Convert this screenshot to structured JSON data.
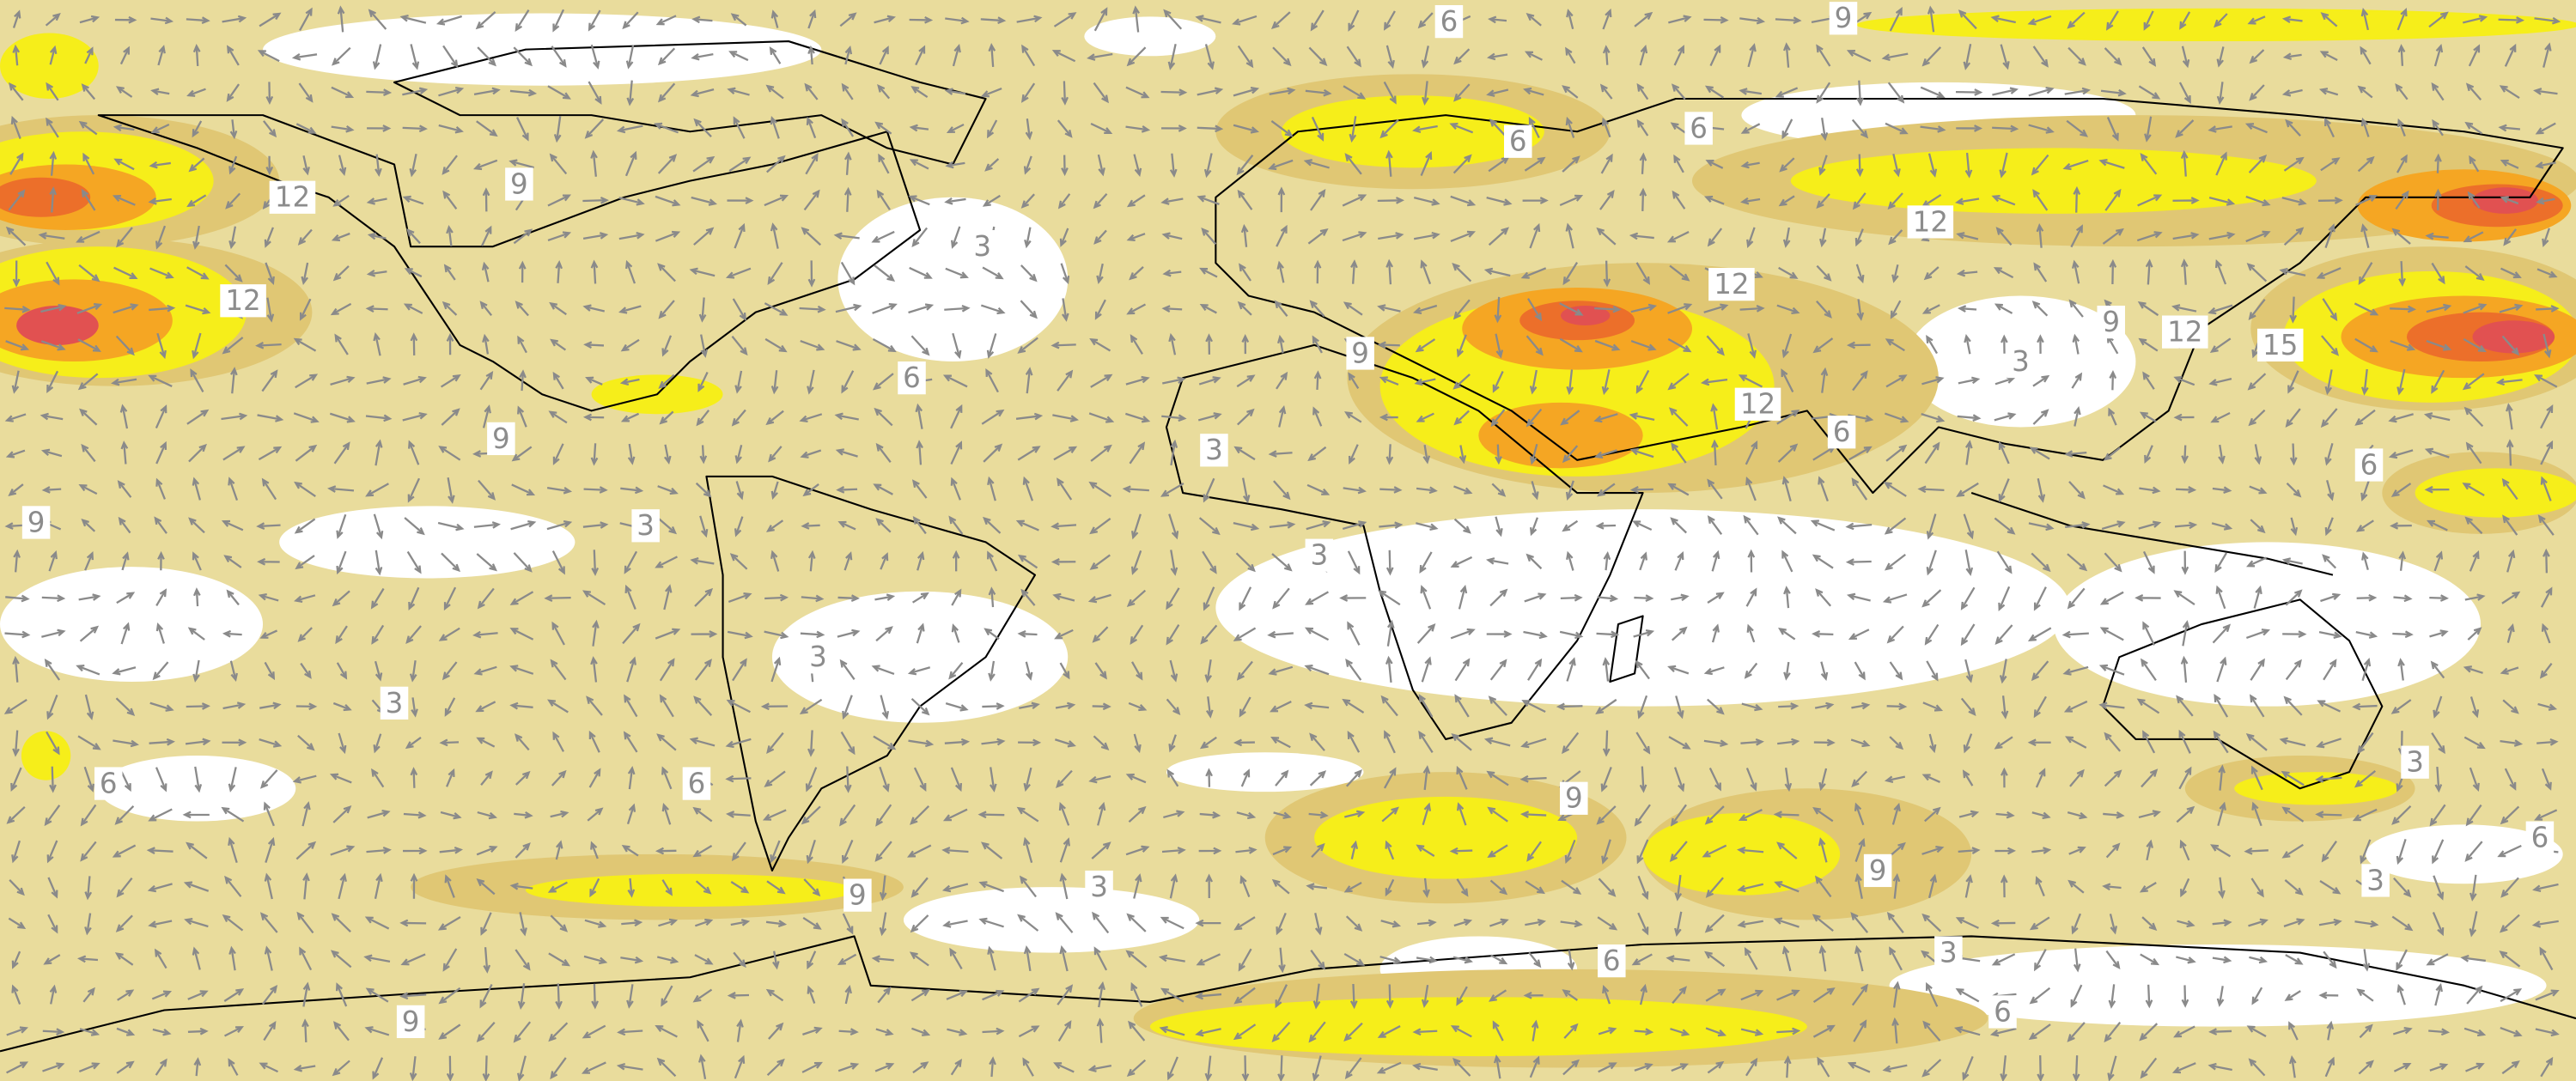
{
  "contour_labels": [
    6,
    9,
    9,
    12,
    12,
    3,
    6,
    9,
    9,
    3,
    3,
    12,
    12,
    12,
    6,
    3,
    9,
    12,
    15,
    6,
    3,
    6,
    6,
    3,
    9,
    9,
    9,
    3,
    3,
    3,
    6,
    6,
    3,
    6,
    9,
    6,
    6,
    3,
    9
  ]
}
